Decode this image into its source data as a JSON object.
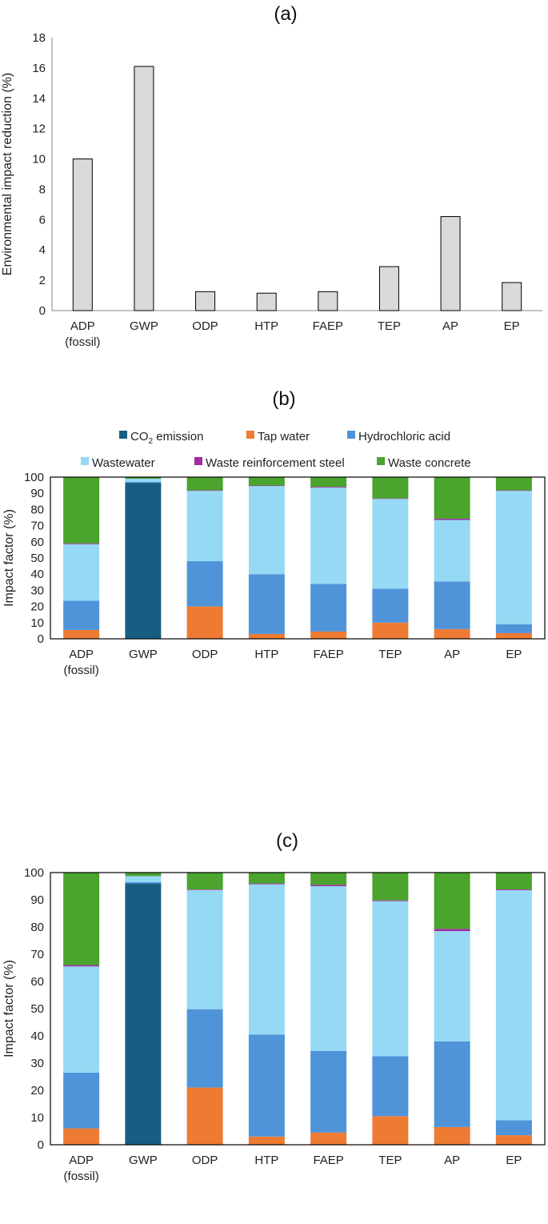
{
  "chart_data": [
    {
      "type": "bar",
      "title": "(a)",
      "ylabel": "Environmental  impact reduction (%)",
      "ylim": [
        0,
        18
      ],
      "yticks": [
        "0",
        "2",
        "4",
        "6",
        "8",
        "10",
        "12",
        "14",
        "16",
        "18"
      ],
      "categories": [
        "ADP (fossil)",
        "GWP",
        "ODP",
        "HTP",
        "FAEP",
        "TEP",
        "AP",
        "EP"
      ],
      "values": [
        10.0,
        16.1,
        1.25,
        1.15,
        1.25,
        2.9,
        6.2,
        1.85
      ],
      "bar_color": "#d9d9d9"
    },
    {
      "type": "stacked-bar",
      "title": "(b)",
      "ylabel": "Impact factor (%)",
      "ylim": [
        0,
        100
      ],
      "yticks": [
        "0",
        "10",
        "20",
        "30",
        "40",
        "50",
        "60",
        "70",
        "80",
        "90",
        "100"
      ],
      "categories": [
        "ADP (fossil)",
        "GWP",
        "ODP",
        "HTP",
        "FAEP",
        "TEP",
        "AP",
        "EP"
      ],
      "series": [
        {
          "name": "CO2 emission",
          "color": "#175e82",
          "values": [
            0,
            96.5,
            0,
            0,
            0,
            0,
            0,
            0
          ]
        },
        {
          "name": "Tap water",
          "color": "#ee7b34",
          "values": [
            5.5,
            0,
            20,
            3,
            4.5,
            10,
            6,
            3.5
          ]
        },
        {
          "name": "Hydrochloric acid",
          "color": "#4f94d9",
          "values": [
            18,
            0.5,
            28,
            37,
            29.5,
            21,
            29.5,
            5.5
          ]
        },
        {
          "name": "Wastewater",
          "color": "#96d9f5",
          "values": [
            35,
            2,
            43.5,
            54.5,
            59.5,
            55.5,
            38,
            82.5
          ]
        },
        {
          "name": "Waste reinforcement steel",
          "color": "#a12ba1",
          "values": [
            0.5,
            0,
            0.3,
            0.3,
            0.5,
            0.3,
            0.8,
            0.3
          ]
        },
        {
          "name": "Waste concrete",
          "color": "#4aa42e",
          "values": [
            41,
            1,
            8.2,
            5.2,
            6,
            13.2,
            25.7,
            8.2
          ]
        }
      ]
    },
    {
      "type": "stacked-bar",
      "title": "(c)",
      "ylabel": "Impact factor (%)",
      "ylim": [
        0,
        100
      ],
      "yticks": [
        "0",
        "10",
        "20",
        "30",
        "40",
        "50",
        "60",
        "70",
        "80",
        "90",
        "100"
      ],
      "categories": [
        "ADP (fossil)",
        "GWP",
        "ODP",
        "HTP",
        "FAEP",
        "TEP",
        "AP",
        "EP"
      ],
      "series": [
        {
          "name": "CO2 emission",
          "color": "#175e82",
          "values": [
            0,
            96,
            0,
            0,
            0,
            0,
            0,
            0
          ]
        },
        {
          "name": "Tap water",
          "color": "#ee7b34",
          "values": [
            6,
            0,
            21,
            3,
            4.5,
            10.5,
            6.5,
            3.5
          ]
        },
        {
          "name": "Hydrochloric acid",
          "color": "#4f94d9",
          "values": [
            20.5,
            0.5,
            28.8,
            37.5,
            30,
            22,
            31.5,
            5.5
          ]
        },
        {
          "name": "Wastewater",
          "color": "#96d9f5",
          "values": [
            39,
            2.2,
            43.8,
            55.2,
            60.5,
            57,
            40.5,
            84.5
          ]
        },
        {
          "name": "Waste reinforcement steel",
          "color": "#a12ba1",
          "values": [
            0.5,
            0,
            0.2,
            0.3,
            0.5,
            0.3,
            0.8,
            0.3
          ]
        },
        {
          "name": "Waste concrete",
          "color": "#4aa42e",
          "values": [
            34,
            1.3,
            6.2,
            4,
            4.5,
            10.2,
            20.7,
            6.2
          ]
        }
      ]
    }
  ],
  "legend": {
    "co2_prefix": "CO",
    "co2_sub": "2",
    "co2_suffix": " emission",
    "tap_water": "Tap water",
    "hydrochloric_acid": "Hydrochloric acid",
    "wastewater": "Wastewater",
    "waste_steel": "Waste reinforcement steel",
    "waste_concrete": "Waste concrete"
  }
}
